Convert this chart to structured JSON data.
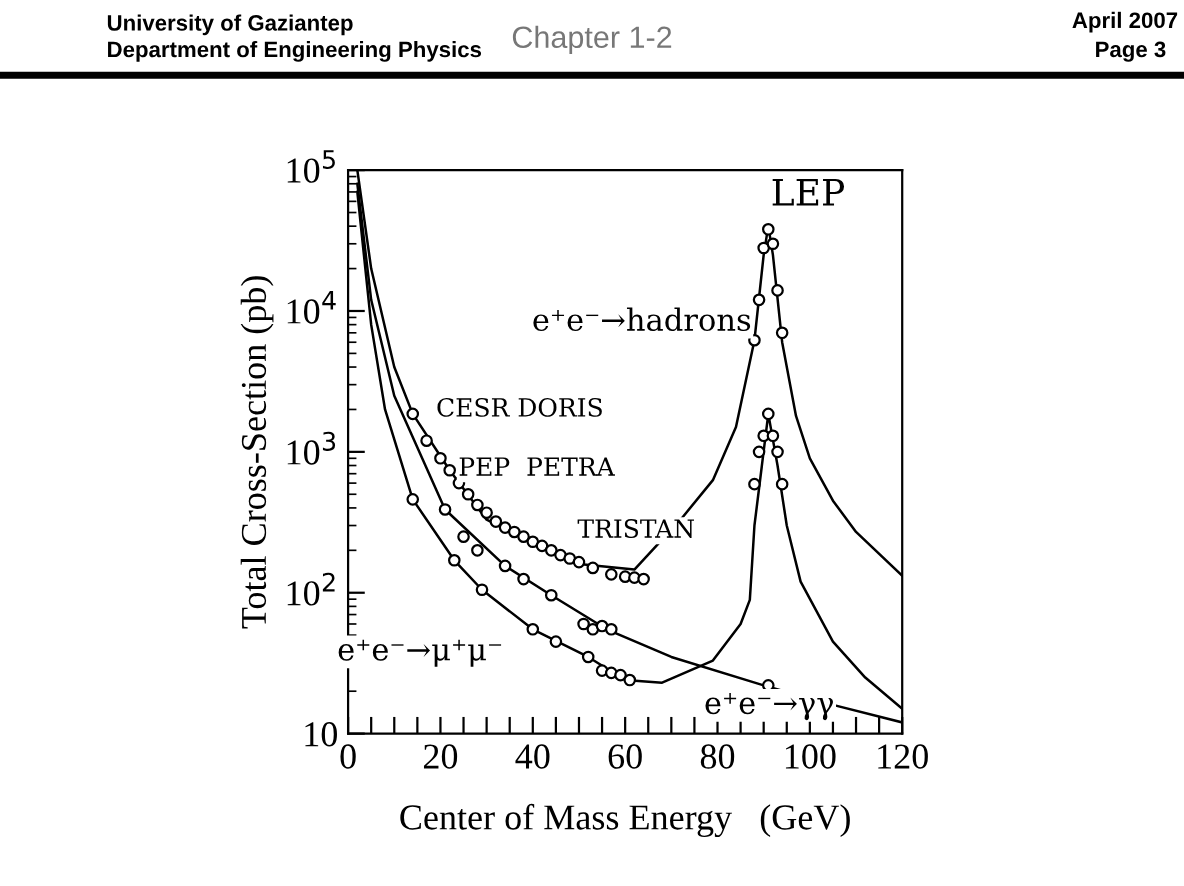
{
  "chart_data": {
    "type": "line",
    "xlabel": "Center of Mass Energy   (GeV)",
    "ylabel": "Total Cross-Section (pb)",
    "log": "y",
    "xlim": [
      0,
      120
    ],
    "ylim": [
      10,
      100000
    ],
    "xticks": [
      0,
      {
        "value": 5,
        "label": null
      },
      {
        "value": 10,
        "label": null
      },
      {
        "value": 15,
        "label": null
      },
      20,
      {
        "value": 25,
        "label": null
      },
      {
        "value": 30,
        "label": null
      },
      {
        "value": 35,
        "label": null
      },
      40,
      {
        "value": 45,
        "label": null
      },
      {
        "value": 50,
        "label": null
      },
      {
        "value": 55,
        "label": null
      },
      60,
      {
        "value": 65,
        "label": null
      },
      {
        "value": 70,
        "label": null
      },
      {
        "value": 75,
        "label": null
      },
      80,
      {
        "value": 85,
        "label": null
      },
      {
        "value": 90,
        "label": null
      },
      {
        "value": 95,
        "label": null
      },
      100,
      {
        "value": 105,
        "label": null
      },
      {
        "value": 110,
        "label": null
      },
      {
        "value": 115,
        "label": null
      },
      120
    ],
    "yticks": [
      10,
      {
        "value": 100,
        "label": "10$^{2}$"
      },
      {
        "value": 1000,
        "label": "10$^{3}$"
      },
      {
        "value": 10000,
        "label": "10$^{4}$"
      },
      {
        "value": 100000,
        "label": "10$^{5}$"
      }
    ],
    "grid": false,
    "legend": false,
    "series": [
      {
        "color": "#000000",
        "x": [
          2,
          5,
          10,
          14,
          22,
          30,
          40,
          50,
          62,
          72,
          79,
          84,
          88,
          90,
          91,
          92,
          94,
          97,
          100,
          105,
          110,
          120
        ],
        "values": [
          100000,
          20000,
          4000,
          1860,
          740,
          330,
          224,
          160,
          146,
          330,
          630,
          1500,
          6200,
          25000,
          40000,
          25000,
          6000,
          1800,
          900,
          450,
          270,
          132
        ]
      },
      {
        "color": "#000000",
        "x": [
          2,
          5,
          10,
          21,
          34,
          44,
          56,
          70,
          90,
          105,
          120
        ],
        "values": [
          80000,
          12000,
          2500,
          390,
          155,
          96,
          55,
          35,
          22,
          16,
          12
        ]
      },
      {
        "color": "#000000",
        "x": [
          2,
          5,
          8,
          14,
          23,
          29,
          40,
          52,
          60,
          68,
          79,
          85,
          87,
          88,
          91,
          93,
          95,
          98,
          105,
          112,
          120
        ],
        "values": [
          70000,
          8000,
          2000,
          460,
          170,
          105,
          55,
          35,
          24,
          23,
          33,
          60,
          89,
          300,
          1860,
          800,
          300,
          120,
          45,
          25,
          15
        ]
      },
      {
        "type": "scatter",
        "color": "#000000",
        "marker": "circle",
        "x": [
          14,
          17,
          20,
          22,
          24,
          26,
          28,
          30,
          32,
          34,
          36,
          38,
          40,
          42,
          44,
          46,
          48,
          50,
          53,
          57,
          60,
          62,
          64
        ],
        "values": [
          1860,
          1200,
          900,
          740,
          600,
          500,
          420,
          370,
          320,
          290,
          270,
          250,
          230,
          215,
          200,
          185,
          175,
          165,
          150,
          135,
          130,
          128,
          125
        ]
      },
      {
        "type": "scatter",
        "color": "#000000",
        "marker": "circle",
        "x": [
          21,
          25,
          28,
          34,
          38,
          44,
          51,
          53,
          55,
          57
        ],
        "values": [
          390,
          250,
          200,
          155,
          125,
          96,
          60,
          55,
          58,
          55
        ]
      },
      {
        "type": "scatter",
        "color": "#000000",
        "marker": "circle",
        "x": [
          14,
          23,
          29,
          40,
          45,
          52,
          55,
          57,
          59,
          61
        ],
        "values": [
          460,
          170,
          105,
          55,
          45,
          35,
          28,
          27,
          26,
          24
        ]
      },
      {
        "type": "scatter",
        "color": "#000000",
        "marker": "circle",
        "x": [
          88,
          89,
          90,
          91,
          92,
          93,
          94
        ],
        "values": [
          6200,
          12000,
          28000,
          38000,
          30000,
          14000,
          7000
        ]
      },
      {
        "type": "scatter",
        "color": "#000000",
        "marker": "circle",
        "x": [
          88,
          89,
          90,
          91,
          92,
          93,
          94,
          91
        ],
        "values": [
          590,
          1000,
          1300,
          1860,
          1300,
          1000,
          590,
          22
        ]
      }
    ],
    "annotations": [
      "LEP",
      "e⁺e⁻→hadrons",
      "CESR DORIS",
      "PEP  PETRA",
      "TRISTAN",
      "e⁺e⁻→μ⁺μ⁻",
      "e⁺e⁻→γγ",
      "University of Gaziantep",
      "Department of Engineering Physics",
      "Chapter 1-2",
      "April 2007",
      "Page 3"
    ]
  }
}
